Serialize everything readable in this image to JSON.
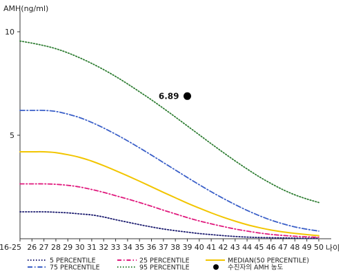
{
  "chart_data": {
    "type": "line",
    "ylabel": "AMH(ng/ml)",
    "xlabel": "나이",
    "x_tick_labels": [
      "16-25",
      "26",
      "27",
      "28",
      "29",
      "30",
      "31",
      "32",
      "33",
      "34",
      "35",
      "36",
      "37",
      "38",
      "39",
      "40",
      "41",
      "42",
      "43",
      "44",
      "45",
      "46",
      "47",
      "48",
      "49",
      "50"
    ],
    "y_ticks": [
      5,
      10
    ],
    "ylim": [
      0,
      10.8
    ],
    "series": [
      {
        "name": "5 PERCENTILE",
        "color": "#1a1a6e",
        "dash": "1.5,2.5",
        "values": [
          1.3,
          1.3,
          1.3,
          1.28,
          1.25,
          1.2,
          1.15,
          1.05,
          0.92,
          0.8,
          0.68,
          0.57,
          0.47,
          0.39,
          0.32,
          0.25,
          0.2,
          0.15,
          0.11,
          0.08,
          0.06,
          0.05,
          0.04,
          0.03,
          0.02,
          0.02
        ]
      },
      {
        "name": "25 PERCENTILE",
        "color": "#e0197d",
        "dash": "6,3,1.5,3",
        "values": [
          2.65,
          2.65,
          2.65,
          2.63,
          2.58,
          2.5,
          2.38,
          2.24,
          2.08,
          1.92,
          1.75,
          1.57,
          1.38,
          1.2,
          1.02,
          0.86,
          0.72,
          0.59,
          0.47,
          0.37,
          0.28,
          0.21,
          0.16,
          0.12,
          0.09,
          0.07
        ]
      },
      {
        "name": "75 PERCENTILE",
        "color": "#3a5fc8",
        "dash": "7,3,1.5,3",
        "values": [
          6.2,
          6.2,
          6.2,
          6.15,
          6.02,
          5.85,
          5.62,
          5.35,
          5.05,
          4.73,
          4.39,
          4.04,
          3.68,
          3.32,
          2.96,
          2.61,
          2.27,
          1.95,
          1.65,
          1.37,
          1.12,
          0.9,
          0.72,
          0.57,
          0.46,
          0.37
        ]
      },
      {
        "name": "MEDIAN(50 PERCENTILE)",
        "color": "#f2c500",
        "dash": "",
        "values": [
          4.2,
          4.2,
          4.2,
          4.16,
          4.06,
          3.93,
          3.75,
          3.53,
          3.29,
          3.04,
          2.78,
          2.51,
          2.24,
          1.98,
          1.72,
          1.48,
          1.25,
          1.04,
          0.85,
          0.68,
          0.54,
          0.42,
          0.33,
          0.26,
          0.2,
          0.15
        ]
      },
      {
        "name": "95 PERCENTILE",
        "color": "#2e7d32",
        "dash": "1.5,2.5",
        "values": [
          9.55,
          9.45,
          9.33,
          9.18,
          8.98,
          8.74,
          8.47,
          8.17,
          7.84,
          7.48,
          7.1,
          6.71,
          6.3,
          5.88,
          5.45,
          5.02,
          4.59,
          4.17,
          3.76,
          3.37,
          3.0,
          2.67,
          2.37,
          2.12,
          1.92,
          1.75
        ]
      }
    ],
    "annotation": {
      "label": "6.89",
      "x": "39",
      "y": 6.89,
      "legend_label": "수진자의 AMH 농도",
      "color": "#000000"
    },
    "grid": false
  }
}
